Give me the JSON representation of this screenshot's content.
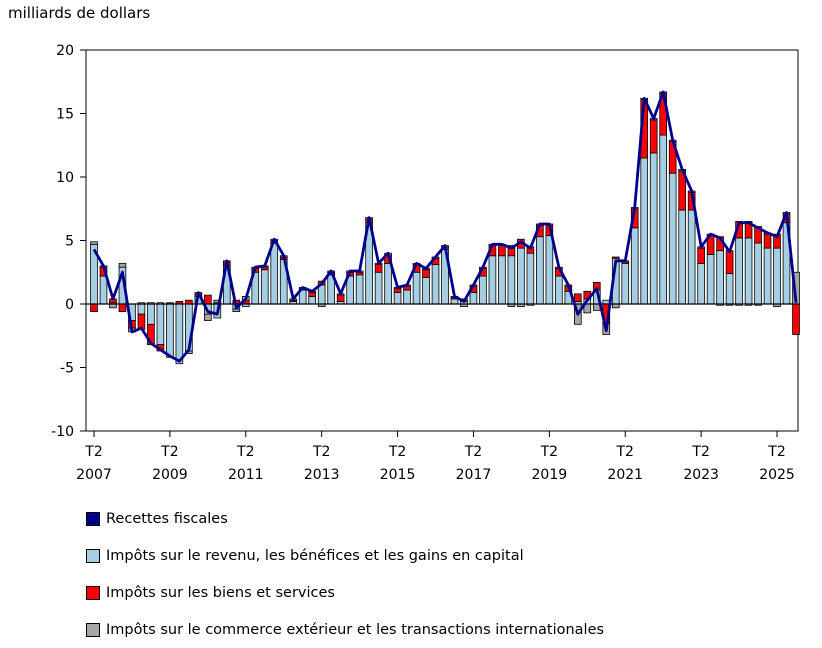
{
  "chart_data": {
    "type": "bar",
    "unit_label": "milliards de dollars",
    "ylim": [
      -10,
      20
    ],
    "yticks": [
      "20",
      "15",
      "10",
      "5",
      "0",
      "-5",
      "-10"
    ],
    "ytick_values": [
      20,
      15,
      10,
      5,
      0,
      -5,
      -10
    ],
    "xtick_quarter_labels": [
      "T2",
      "T2",
      "T2",
      "T2",
      "T2",
      "T2",
      "T2",
      "T2",
      "T2",
      "T2"
    ],
    "xtick_year_labels": [
      "2007",
      "2009",
      "2011",
      "2013",
      "2015",
      "2017",
      "2019",
      "2021",
      "2023",
      "2025"
    ],
    "xtick_indices": [
      0,
      8,
      16,
      24,
      32,
      40,
      48,
      56,
      64,
      72
    ],
    "series": [
      {
        "name": "Recettes fiscales",
        "kind": "line",
        "color": "#00008b"
      },
      {
        "name": "Impôts sur le revenu, les bénéfices et les gains en capital",
        "kind": "bar",
        "color": "#a6cee3"
      },
      {
        "name": "Impôts sur les biens et services",
        "kind": "bar",
        "color": "#ff0000"
      },
      {
        "name": "Impôts sur le commerce extérieur et les transactions internationales",
        "kind": "bar",
        "color": "#a6a6a6"
      }
    ],
    "income": [
      4.7,
      2.2,
      0.1,
      2.9,
      -1.3,
      -0.8,
      -1.6,
      -3.2,
      -4.2,
      -4.7,
      -3.7,
      0.6,
      -0.8,
      -1.1,
      3.0,
      -0.4,
      -0.2,
      2.5,
      2.7,
      4.8,
      3.5,
      0.2,
      1.1,
      0.6,
      1.5,
      2.3,
      0.2,
      2.2,
      2.3,
      6.4,
      2.5,
      3.2,
      0.9,
      1.1,
      2.5,
      2.1,
      3.1,
      4.3,
      0.4,
      0.2,
      0.9,
      2.2,
      3.8,
      3.8,
      3.8,
      4.4,
      4.0,
      5.3,
      5.4,
      2.2,
      1.0,
      0.2,
      0.4,
      1.1,
      0.3,
      3.6,
      3.2,
      6.0,
      11.5,
      11.9,
      13.3,
      10.3,
      7.4,
      7.4,
      3.2,
      3.9,
      4.2,
      2.4,
      5.2,
      5.2,
      4.8,
      4.4,
      4.4,
      6.4,
      0.0
    ],
    "goods": [
      -0.6,
      0.7,
      0.3,
      -0.6,
      -0.6,
      -1.2,
      -1.6,
      -0.5,
      0.1,
      0.2,
      0.3,
      0.2,
      0.7,
      0.1,
      0.3,
      0.3,
      0.3,
      0.3,
      0.2,
      0.2,
      0.2,
      0.1,
      0.1,
      0.3,
      0.3,
      0.2,
      0.5,
      0.3,
      0.2,
      0.3,
      0.6,
      0.6,
      0.3,
      0.3,
      0.6,
      0.6,
      0.5,
      0.2,
      0.1,
      0.2,
      0.5,
      0.6,
      0.8,
      0.8,
      0.8,
      0.7,
      0.5,
      0.9,
      0.8,
      0.6,
      0.4,
      0.6,
      0.6,
      0.6,
      -1.5,
      0.1,
      0.1,
      1.5,
      4.6,
      2.6,
      3.3,
      2.5,
      3.1,
      1.4,
      1.2,
      1.5,
      1.1,
      1.8,
      1.3,
      1.3,
      1.3,
      1.1,
      1.1,
      0.7,
      -2.4
    ],
    "trade": [
      0.2,
      0.1,
      -0.3,
      0.3,
      -0.3,
      0.1,
      0.1,
      0.1,
      0.0,
      0.0,
      -0.2,
      0.1,
      -0.5,
      0.2,
      0.1,
      -0.2,
      0.3,
      0.1,
      0.1,
      0.1,
      0.1,
      0.1,
      0.1,
      0.1,
      -0.2,
      0.1,
      0.1,
      0.1,
      0.1,
      0.1,
      0.1,
      0.2,
      0.1,
      0.1,
      0.1,
      0.1,
      0.1,
      0.1,
      0.1,
      -0.2,
      0.1,
      0.1,
      0.1,
      0.1,
      -0.2,
      -0.2,
      -0.1,
      0.1,
      0.1,
      0.1,
      0.1,
      -1.6,
      -0.7,
      -0.5,
      -0.9,
      -0.3,
      0.1,
      0.1,
      0.1,
      0.1,
      0.1,
      0.1,
      0.1,
      0.1,
      0.1,
      0.1,
      -0.1,
      -0.1,
      -0.1,
      -0.1,
      -0.1,
      0.1,
      -0.2,
      0.1,
      2.5
    ],
    "total": [
      4.3,
      3.0,
      0.4,
      2.5,
      -2.2,
      -1.9,
      -3.1,
      -3.6,
      -4.1,
      -4.5,
      -3.6,
      0.9,
      -0.6,
      -0.8,
      3.4,
      -0.3,
      0.4,
      2.9,
      3.0,
      5.1,
      3.8,
      0.4,
      1.3,
      1.0,
      1.6,
      2.6,
      0.8,
      2.6,
      2.6,
      6.8,
      3.2,
      4.0,
      1.3,
      1.5,
      3.2,
      2.8,
      3.7,
      4.6,
      0.6,
      0.2,
      1.5,
      2.9,
      4.7,
      4.7,
      4.4,
      4.9,
      4.4,
      6.3,
      6.3,
      2.9,
      1.5,
      -0.8,
      0.3,
      1.2,
      -2.1,
      3.4,
      3.4,
      7.6,
      16.2,
      14.6,
      16.7,
      12.9,
      10.6,
      8.9,
      4.5,
      5.5,
      5.2,
      4.1,
      6.4,
      6.4,
      6.0,
      5.6,
      5.3,
      7.2,
      0.1
    ]
  },
  "legend": {
    "item1": "Recettes fiscales",
    "item2": "Impôts sur le revenu, les bénéfices et les gains en capital",
    "item3": "Impôts sur les biens et services",
    "item4": "Impôts sur le commerce extérieur et les transactions internationales"
  }
}
